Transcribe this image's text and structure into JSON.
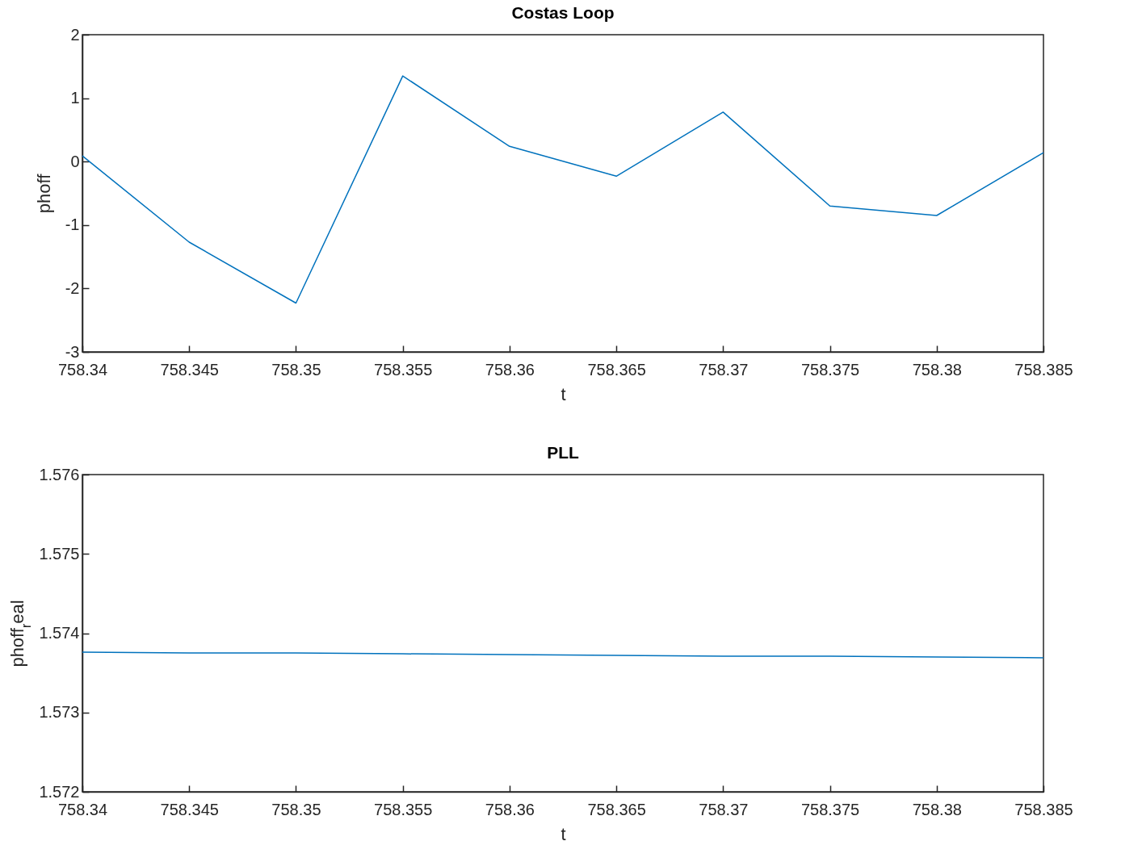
{
  "chart_data": [
    {
      "type": "line",
      "title": "Costas Loop",
      "xlabel": "t",
      "ylabel": "phoff",
      "x": [
        758.34,
        758.345,
        758.35,
        758.355,
        758.36,
        758.365,
        758.37,
        758.375,
        758.38,
        758.385
      ],
      "series": [
        {
          "color": "#0072bd",
          "values": [
            0.09,
            -1.27,
            -2.23,
            1.35,
            0.24,
            -0.23,
            0.78,
            -0.7,
            -0.85,
            0.14
          ]
        }
      ],
      "xlim": [
        758.34,
        758.385
      ],
      "xticks": [
        758.34,
        758.345,
        758.35,
        758.355,
        758.36,
        758.365,
        758.37,
        758.375,
        758.38,
        758.385
      ],
      "ylim": [
        -3,
        2
      ],
      "yticks": [
        -3,
        -2,
        -1,
        0,
        1,
        2
      ]
    },
    {
      "type": "line",
      "title": "PLL",
      "xlabel": "t",
      "ylabel": "phoff$_{r}$eal",
      "x": [
        758.34,
        758.345,
        758.35,
        758.355,
        758.36,
        758.365,
        758.37,
        758.375,
        758.38,
        758.385
      ],
      "series": [
        {
          "color": "#0072bd",
          "values": [
            1.57376,
            1.57375,
            1.57375,
            1.57374,
            1.57373,
            1.57372,
            1.57371,
            1.57371,
            1.5737,
            1.57369
          ]
        }
      ],
      "xlim": [
        758.34,
        758.385
      ],
      "xticks": [
        758.34,
        758.345,
        758.35,
        758.355,
        758.36,
        758.365,
        758.37,
        758.375,
        758.38,
        758.385
      ],
      "ylim": [
        1.572,
        1.576
      ],
      "yticks": [
        1.572,
        1.573,
        1.574,
        1.575,
        1.576
      ]
    }
  ]
}
